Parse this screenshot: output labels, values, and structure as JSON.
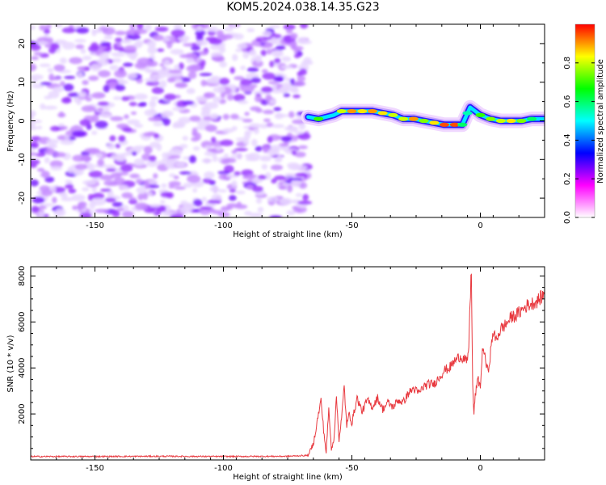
{
  "page": {
    "title": "KOM5.2024.038.14.35.G23"
  },
  "colors": {
    "line": "#e8393f",
    "spectrogram_noise": [
      "#e8d6ff",
      "#c58cff",
      "#9b3bff",
      "#7a1fff"
    ],
    "colorbar_stops": [
      "#ffffff",
      "#ff00ff",
      "#0000ff",
      "#00ffff",
      "#00ff00",
      "#ffff00",
      "#ff0000"
    ]
  },
  "chart_data": [
    {
      "type": "heatmap",
      "title": "KOM5.2024.038.14.35.G23",
      "xlabel": "Height of straight line (km)",
      "ylabel": "Frequency (Hz)",
      "xlim": [
        -175,
        25
      ],
      "ylim": [
        -25,
        25
      ],
      "x_ticks": [
        -150,
        -100,
        -50,
        0
      ],
      "y_ticks": [
        -20,
        -10,
        0,
        10,
        20
      ],
      "noise_region_x": [
        -175,
        -67
      ],
      "signal_trace": {
        "x": [
          -67,
          -63,
          -60,
          -57,
          -54,
          -50,
          -46,
          -42,
          -38,
          -34,
          -30,
          -26,
          -22,
          -18,
          -14,
          -10,
          -7,
          -5,
          -4,
          -2,
          0,
          4,
          8,
          12,
          16,
          20,
          25
        ],
        "y": [
          1,
          0.5,
          1,
          1.5,
          2.5,
          2.5,
          2.5,
          2.5,
          2,
          1.5,
          0.5,
          0.5,
          0,
          -0.5,
          -1,
          -1,
          -1,
          2,
          3.5,
          2.5,
          1.5,
          0.5,
          0,
          0,
          0,
          0.5,
          0.5
        ],
        "amplitude": [
          0.3,
          0.7,
          0.5,
          0.5,
          0.8,
          0.9,
          0.85,
          0.9,
          0.85,
          0.8,
          0.8,
          0.9,
          0.75,
          0.85,
          0.95,
          0.95,
          0.6,
          0.55,
          0.45,
          0.5,
          0.7,
          0.75,
          0.8,
          0.85,
          0.75,
          0.6,
          0.4
        ]
      },
      "colorbar": {
        "label": "Normalized spectral amplitude",
        "range": [
          0.0,
          1.0
        ],
        "ticks": [
          0.0,
          0.2,
          0.4,
          0.6,
          0.8
        ],
        "tick_labels": [
          "0.0",
          "0.2",
          "0.4",
          "0.6",
          "0.8"
        ]
      }
    },
    {
      "type": "line",
      "xlabel": "Height of straight line (km)",
      "ylabel": "SNR (10 * v/v)",
      "xlim": [
        -175,
        25
      ],
      "ylim": [
        0,
        8400
      ],
      "x_ticks": [
        -150,
        -100,
        -50,
        0
      ],
      "y_ticks": [
        2000,
        4000,
        6000,
        8000
      ],
      "series": [
        {
          "x": [
            -175,
            -150,
            -125,
            -100,
            -75,
            -67,
            -65,
            -63,
            -62,
            -61,
            -60,
            -59,
            -58,
            -57,
            -56,
            -55,
            -54,
            -53,
            -52,
            -51,
            -50,
            -48,
            -46,
            -44,
            -42,
            -40,
            -38,
            -36,
            -34,
            -32,
            -30,
            -28,
            -26,
            -24,
            -22,
            -20,
            -18,
            -16,
            -14,
            -12,
            -10,
            -8,
            -6,
            -5,
            -4.5,
            -4,
            -3.5,
            -3,
            -2.5,
            -2,
            -1,
            0,
            1,
            2,
            3,
            4,
            5,
            6,
            8,
            10,
            12,
            14,
            16,
            18,
            20,
            22,
            25
          ],
          "y": [
            150,
            150,
            160,
            150,
            160,
            200,
            700,
            2000,
            2600,
            1300,
            300,
            2200,
            500,
            900,
            2700,
            900,
            1800,
            3200,
            1500,
            2000,
            1600,
            2700,
            2100,
            2600,
            2300,
            2700,
            2200,
            2500,
            2300,
            2600,
            2500,
            2900,
            3100,
            2900,
            3200,
            3300,
            3300,
            3600,
            3900,
            4000,
            4300,
            4500,
            4400,
            4200,
            5000,
            6800,
            8300,
            3200,
            2000,
            2800,
            3500,
            3200,
            5000,
            4300,
            3800,
            4700,
            5600,
            5200,
            5700,
            5900,
            6200,
            6300,
            6500,
            6700,
            6800,
            6900,
            7200
          ]
        }
      ]
    }
  ]
}
